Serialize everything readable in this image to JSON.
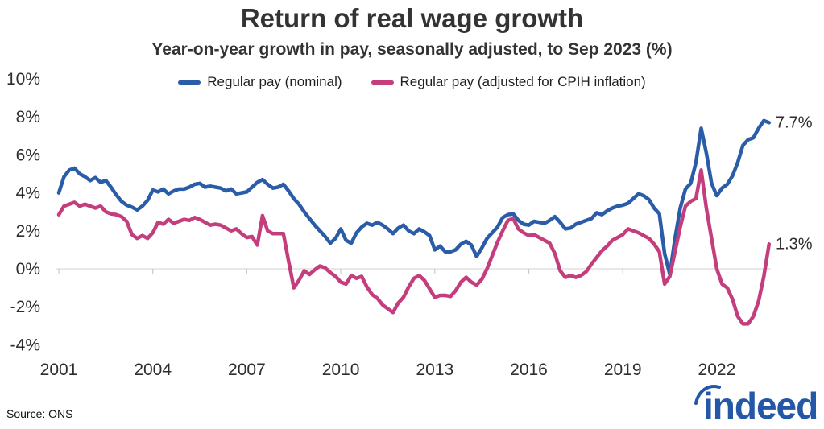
{
  "header": {
    "title": "Return of real wage growth",
    "subtitle": "Year-on-year growth in pay, seasonally adjusted, to Sep 2023 (%)"
  },
  "footer": {
    "source": "Source: ONS",
    "brand": "indeed"
  },
  "colors": {
    "title_text": "#333333",
    "axis_text": "#2e2e2e",
    "axis_line": "#d9d9d9",
    "tick_mark": "#c9c9c9",
    "nominal_blue": "#2a5ca8",
    "real_pink": "#c43d7d",
    "logo_blue": "#2458a6"
  },
  "chart_data": {
    "type": "line",
    "title": "Return of real wage growth",
    "subtitle": "Year-on-year growth in pay, seasonally adjusted, to Sep 2023 (%)",
    "x_start": 2001.0,
    "x_step": 0.16667,
    "x_end_label": "Sep 2023",
    "xlim": [
      2001,
      2023.9
    ],
    "ylim": [
      -4,
      10
    ],
    "grid": false,
    "baseline_value": 0,
    "legend_position": "top",
    "x_ticks": [
      "2001",
      "2004",
      "2007",
      "2010",
      "2013",
      "2016",
      "2019",
      "2022"
    ],
    "y_tick_values": [
      10,
      8,
      6,
      4,
      2,
      0,
      -2,
      -4
    ],
    "y_tick_labels": [
      "10%",
      "8%",
      "6%",
      "4%",
      "2%",
      "0%",
      "-2%",
      "-4%"
    ],
    "series": [
      {
        "name": "Regular pay (nominal)",
        "color": "#2a5ca8",
        "end_label": "7.7%",
        "values": [
          4.0,
          4.85,
          5.2,
          5.3,
          5.0,
          4.85,
          4.65,
          4.8,
          4.55,
          4.65,
          4.3,
          3.9,
          3.55,
          3.35,
          3.25,
          3.1,
          3.3,
          3.6,
          4.15,
          4.05,
          4.2,
          3.95,
          4.1,
          4.2,
          4.2,
          4.3,
          4.45,
          4.5,
          4.3,
          4.35,
          4.3,
          4.25,
          4.1,
          4.2,
          3.95,
          4.0,
          4.05,
          4.3,
          4.55,
          4.7,
          4.45,
          4.25,
          4.3,
          4.45,
          4.1,
          3.7,
          3.4,
          3.0,
          2.65,
          2.3,
          2.0,
          1.7,
          1.35,
          1.6,
          2.1,
          1.5,
          1.35,
          1.9,
          2.2,
          2.4,
          2.3,
          2.45,
          2.3,
          2.1,
          1.85,
          2.15,
          2.3,
          2.0,
          1.85,
          2.1,
          1.95,
          1.75,
          1.0,
          1.2,
          0.9,
          0.9,
          1.0,
          1.3,
          1.45,
          1.25,
          0.65,
          1.1,
          1.6,
          1.9,
          2.2,
          2.7,
          2.85,
          2.9,
          2.55,
          2.35,
          2.3,
          2.5,
          2.45,
          2.4,
          2.55,
          2.75,
          2.45,
          2.1,
          2.15,
          2.35,
          2.45,
          2.55,
          2.65,
          2.95,
          2.85,
          3.05,
          3.2,
          3.3,
          3.35,
          3.45,
          3.7,
          3.95,
          3.85,
          3.65,
          3.2,
          2.9,
          0.8,
          -0.3,
          1.6,
          3.2,
          4.2,
          4.5,
          5.6,
          7.4,
          6.1,
          4.5,
          3.85,
          4.25,
          4.45,
          4.9,
          5.6,
          6.5,
          6.8,
          6.9,
          7.4,
          7.8,
          7.7
        ]
      },
      {
        "name": "Regular pay (adjusted for CPIH inflation)",
        "color": "#c43d7d",
        "end_label": "1.3%",
        "values": [
          2.85,
          3.3,
          3.4,
          3.5,
          3.3,
          3.4,
          3.3,
          3.2,
          3.3,
          3.0,
          2.9,
          2.85,
          2.75,
          2.5,
          1.8,
          1.6,
          1.75,
          1.6,
          1.9,
          2.45,
          2.35,
          2.6,
          2.4,
          2.5,
          2.6,
          2.55,
          2.7,
          2.6,
          2.45,
          2.3,
          2.35,
          2.3,
          2.15,
          2.0,
          2.1,
          1.85,
          1.65,
          1.7,
          1.25,
          2.8,
          2.0,
          1.85,
          1.85,
          1.85,
          0.4,
          -1.0,
          -0.6,
          -0.1,
          -0.3,
          -0.05,
          0.15,
          0.05,
          -0.2,
          -0.4,
          -0.7,
          -0.8,
          -0.35,
          -0.5,
          -0.4,
          -0.95,
          -1.35,
          -1.55,
          -1.9,
          -2.1,
          -2.3,
          -1.8,
          -1.5,
          -0.95,
          -0.5,
          -0.35,
          -0.6,
          -1.05,
          -1.5,
          -1.4,
          -1.4,
          -1.45,
          -1.15,
          -0.7,
          -0.45,
          -0.7,
          -0.85,
          -0.55,
          0.0,
          0.7,
          1.4,
          2.0,
          2.55,
          2.65,
          2.1,
          1.9,
          1.75,
          1.8,
          1.65,
          1.5,
          1.35,
          0.8,
          -0.1,
          -0.45,
          -0.35,
          -0.45,
          -0.35,
          -0.15,
          0.25,
          0.6,
          0.95,
          1.2,
          1.5,
          1.65,
          1.8,
          2.1,
          2.0,
          1.9,
          1.75,
          1.6,
          1.3,
          0.9,
          -0.8,
          -0.4,
          0.9,
          2.2,
          3.3,
          3.55,
          3.7,
          5.2,
          3.2,
          1.6,
          0.0,
          -0.8,
          -1.0,
          -1.6,
          -2.5,
          -2.9,
          -2.9,
          -2.5,
          -1.7,
          -0.4,
          1.3
        ]
      }
    ]
  }
}
